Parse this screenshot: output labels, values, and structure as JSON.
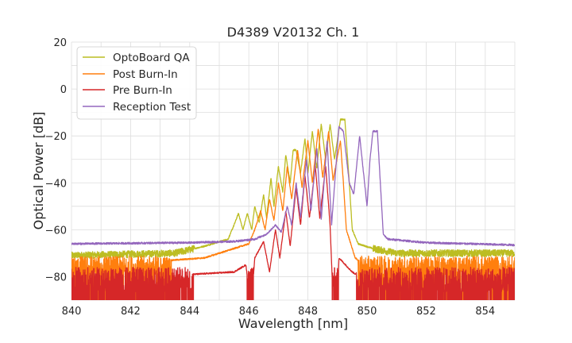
{
  "chart_data": {
    "type": "line",
    "title": "D4389 V20132 Ch. 1",
    "xlabel": "Wavelength [nm]",
    "ylabel": "Optical Power [dB]",
    "xlim": [
      840,
      855
    ],
    "ylim": [
      -90,
      20
    ],
    "xticks": [
      "840",
      "842",
      "844",
      "846",
      "848",
      "850",
      "852",
      "854"
    ],
    "yticks": [
      "20",
      "0",
      "−20",
      "−40",
      "−60",
      "−80"
    ],
    "grid": true,
    "legend_position": "top-left",
    "series": [
      {
        "name": "OptoBoard QA",
        "color": "#bcbd22",
        "floor": -71,
        "noise": 1.5,
        "points": [
          [
            840,
            -71
          ],
          [
            843.5,
            -70
          ],
          [
            844.5,
            -67
          ],
          [
            845.3,
            -64
          ],
          [
            845.5,
            -58
          ],
          [
            845.65,
            -53
          ],
          [
            845.8,
            -60
          ],
          [
            845.95,
            -53
          ],
          [
            846.1,
            -60
          ],
          [
            846.2,
            -50
          ],
          [
            846.35,
            -57
          ],
          [
            846.5,
            -45
          ],
          [
            846.6,
            -55
          ],
          [
            846.75,
            -38
          ],
          [
            846.85,
            -50
          ],
          [
            847.0,
            -33
          ],
          [
            847.15,
            -44
          ],
          [
            847.25,
            -28
          ],
          [
            847.4,
            -40
          ],
          [
            847.5,
            -26
          ],
          [
            847.6,
            -26
          ],
          [
            847.75,
            -36
          ],
          [
            847.9,
            -21
          ],
          [
            848.0,
            -36
          ],
          [
            848.15,
            -18
          ],
          [
            848.3,
            -34
          ],
          [
            848.45,
            -15
          ],
          [
            848.6,
            -30
          ],
          [
            848.75,
            -15
          ],
          [
            848.9,
            -30
          ],
          [
            849.1,
            -13
          ],
          [
            849.25,
            -13
          ],
          [
            849.4,
            -40
          ],
          [
            849.5,
            -60
          ],
          [
            849.7,
            -66
          ],
          [
            850.2,
            -68
          ],
          [
            851,
            -70
          ],
          [
            855,
            -70
          ]
        ]
      },
      {
        "name": "Post Burn-In",
        "color": "#ff7f0e",
        "floor": -76,
        "noise": 8,
        "points": [
          [
            840,
            -76
          ],
          [
            844.5,
            -72
          ],
          [
            845.5,
            -68
          ],
          [
            846.0,
            -66
          ],
          [
            846.2,
            -60
          ],
          [
            846.4,
            -52
          ],
          [
            846.55,
            -60
          ],
          [
            846.7,
            -47
          ],
          [
            846.85,
            -56
          ],
          [
            847.0,
            -40
          ],
          [
            847.15,
            -52
          ],
          [
            847.3,
            -33
          ],
          [
            847.45,
            -47
          ],
          [
            847.65,
            -26
          ],
          [
            847.8,
            -42
          ],
          [
            848.0,
            -22
          ],
          [
            848.15,
            -40
          ],
          [
            848.35,
            -17
          ],
          [
            848.5,
            -38
          ],
          [
            848.7,
            -18
          ],
          [
            848.85,
            -39
          ],
          [
            849.1,
            -22
          ],
          [
            849.2,
            -40
          ],
          [
            849.3,
            -60
          ],
          [
            849.6,
            -72
          ],
          [
            850,
            -76
          ],
          [
            855,
            -76
          ]
        ]
      },
      {
        "name": "Pre Burn-In",
        "color": "#d62728",
        "floor": -82,
        "noise": 10,
        "points": [
          [
            840,
            -82
          ],
          [
            845.5,
            -78
          ],
          [
            845.9,
            -75
          ],
          [
            846.0,
            -85
          ],
          [
            846.1,
            -90
          ],
          [
            846.2,
            -72
          ],
          [
            846.5,
            -65
          ],
          [
            846.7,
            -78
          ],
          [
            846.9,
            -60
          ],
          [
            847.05,
            -72
          ],
          [
            847.25,
            -52
          ],
          [
            847.4,
            -67
          ],
          [
            847.6,
            -42
          ],
          [
            847.75,
            -58
          ],
          [
            847.9,
            -37
          ],
          [
            848.05,
            -55
          ],
          [
            848.25,
            -33
          ],
          [
            848.4,
            -55
          ],
          [
            848.6,
            -33
          ],
          [
            848.75,
            -58
          ],
          [
            848.85,
            -90
          ],
          [
            849.0,
            -90
          ],
          [
            849.05,
            -72
          ],
          [
            849.5,
            -78
          ],
          [
            850,
            -82
          ],
          [
            855,
            -82
          ]
        ]
      },
      {
        "name": "Reception Test",
        "color": "#9467bd",
        "floor": -66,
        "noise": 0.4,
        "points": [
          [
            840,
            -66
          ],
          [
            844,
            -65.5
          ],
          [
            845.5,
            -65
          ],
          [
            846.2,
            -64
          ],
          [
            846.6,
            -62
          ],
          [
            846.9,
            -58
          ],
          [
            847.1,
            -61
          ],
          [
            847.3,
            -50
          ],
          [
            847.45,
            -58
          ],
          [
            847.6,
            -40
          ],
          [
            847.75,
            -55
          ],
          [
            847.95,
            -30
          ],
          [
            848.1,
            -52
          ],
          [
            848.3,
            -25
          ],
          [
            848.45,
            -56
          ],
          [
            848.65,
            -22
          ],
          [
            848.8,
            -58
          ],
          [
            849.05,
            -16
          ],
          [
            849.2,
            -18
          ],
          [
            849.4,
            -40
          ],
          [
            849.55,
            -45
          ],
          [
            849.75,
            -20
          ],
          [
            849.9,
            -38
          ],
          [
            850.0,
            -50
          ],
          [
            850.1,
            -30
          ],
          [
            850.2,
            -18
          ],
          [
            850.35,
            -18
          ],
          [
            850.45,
            -40
          ],
          [
            850.55,
            -62
          ],
          [
            850.7,
            -64
          ],
          [
            852,
            -65.5
          ],
          [
            855,
            -66.5
          ]
        ]
      }
    ]
  }
}
